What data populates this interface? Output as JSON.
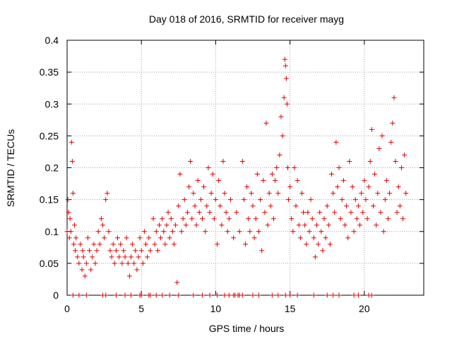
{
  "chart_data": {
    "type": "scatter",
    "title": "Day 018 of 2016, SRMTID for receiver mayg",
    "xlabel": "GPS time / hours",
    "ylabel": "SRMTID / TECUs",
    "xlim": [
      0,
      24
    ],
    "ylim": [
      0,
      0.4
    ],
    "grid": true,
    "marker": "+",
    "color": "#e00000",
    "x_ticks": [
      0,
      5,
      10,
      15,
      20
    ],
    "x_tick_labels": [
      "0",
      "5",
      "10",
      "15",
      "20"
    ],
    "y_ticks": [
      0,
      0.05,
      0.1,
      0.15,
      0.2,
      0.25,
      0.3,
      0.35,
      0.4
    ],
    "y_tick_labels": [
      "0",
      "0.05",
      "0.1",
      "0.15",
      "0.2",
      "0.25",
      "0.3",
      "0.35",
      "0.4"
    ],
    "series": [
      {
        "name": "SRMTID",
        "points": [
          [
            0.0,
            0.1
          ],
          [
            0.05,
            0.15
          ],
          [
            0.1,
            0.13
          ],
          [
            0.15,
            0.09
          ],
          [
            0.2,
            0.12
          ],
          [
            0.25,
            0.1
          ],
          [
            0.3,
            0.24
          ],
          [
            0.35,
            0.21
          ],
          [
            0.4,
            0.16
          ],
          [
            0.45,
            0.08
          ],
          [
            0.5,
            0.11
          ],
          [
            0.55,
            0.07
          ],
          [
            0.6,
            0.09
          ],
          [
            0.7,
            0.06
          ],
          [
            0.8,
            0.05
          ],
          [
            0.9,
            0.08
          ],
          [
            1.0,
            0.04
          ],
          [
            1.05,
            0.07
          ],
          [
            1.1,
            0.06
          ],
          [
            1.2,
            0.03
          ],
          [
            1.3,
            0.05
          ],
          [
            1.4,
            0.09
          ],
          [
            1.5,
            0.07
          ],
          [
            1.6,
            0.04
          ],
          [
            1.7,
            0.06
          ],
          [
            1.8,
            0.08
          ],
          [
            1.9,
            0.05
          ],
          [
            2.0,
            0.07
          ],
          [
            2.1,
            0.1
          ],
          [
            2.2,
            0.08
          ],
          [
            2.3,
            0.12
          ],
          [
            2.4,
            0.11
          ],
          [
            2.5,
            0.09
          ],
          [
            2.6,
            0.15
          ],
          [
            2.7,
            0.16
          ],
          [
            2.8,
            0.1
          ],
          [
            2.9,
            0.07
          ],
          [
            3.0,
            0.06
          ],
          [
            3.1,
            0.08
          ],
          [
            3.2,
            0.05
          ],
          [
            3.3,
            0.07
          ],
          [
            3.4,
            0.09
          ],
          [
            3.5,
            0.06
          ],
          [
            3.6,
            0.08
          ],
          [
            3.7,
            0.05
          ],
          [
            3.8,
            0.07
          ],
          [
            3.9,
            0.06
          ],
          [
            4.0,
            0.09
          ],
          [
            4.1,
            0.05
          ],
          [
            4.2,
            0.03
          ],
          [
            4.3,
            0.06
          ],
          [
            4.4,
            0.08
          ],
          [
            4.5,
            0.05
          ],
          [
            4.6,
            0.07
          ],
          [
            4.7,
            0.04
          ],
          [
            4.8,
            0.06
          ],
          [
            4.9,
            0.09
          ],
          [
            5.0,
            0.07
          ],
          [
            5.1,
            0.05
          ],
          [
            5.2,
            0.1
          ],
          [
            5.3,
            0.08
          ],
          [
            5.4,
            0.06
          ],
          [
            5.5,
            0.09
          ],
          [
            5.6,
            0.07
          ],
          [
            5.8,
            0.12
          ],
          [
            5.9,
            0.08
          ],
          [
            6.0,
            0.1
          ],
          [
            6.1,
            0.07
          ],
          [
            6.2,
            0.11
          ],
          [
            6.3,
            0.09
          ],
          [
            6.4,
            0.12
          ],
          [
            6.5,
            0.1
          ],
          [
            6.6,
            0.08
          ],
          [
            6.7,
            0.11
          ],
          [
            6.8,
            0.13
          ],
          [
            6.9,
            0.09
          ],
          [
            7.0,
            0.12
          ],
          [
            7.1,
            0.1
          ],
          [
            7.2,
            0.08
          ],
          [
            7.3,
            0.11
          ],
          [
            7.4,
            0.02
          ],
          [
            7.5,
            0.14
          ],
          [
            7.6,
            0.19
          ],
          [
            7.7,
            0.1
          ],
          [
            7.8,
            0.12
          ],
          [
            7.9,
            0.15
          ],
          [
            8.0,
            0.11
          ],
          [
            8.1,
            0.13
          ],
          [
            8.2,
            0.17
          ],
          [
            8.3,
            0.21
          ],
          [
            8.4,
            0.12
          ],
          [
            8.5,
            0.16
          ],
          [
            8.6,
            0.14
          ],
          [
            8.7,
            0.11
          ],
          [
            8.8,
            0.18
          ],
          [
            8.9,
            0.13
          ],
          [
            9.0,
            0.15
          ],
          [
            9.1,
            0.12
          ],
          [
            9.2,
            0.17
          ],
          [
            9.3,
            0.1
          ],
          [
            9.4,
            0.14
          ],
          [
            9.5,
            0.2
          ],
          [
            9.6,
            0.13
          ],
          [
            9.7,
            0.16
          ],
          [
            9.8,
            0.19
          ],
          [
            9.9,
            0.12
          ],
          [
            10.0,
            0.15
          ],
          [
            10.1,
            0.08
          ],
          [
            10.2,
            0.18
          ],
          [
            10.3,
            0.14
          ],
          [
            10.4,
            0.11
          ],
          [
            10.5,
            0.21
          ],
          [
            10.6,
            0.16
          ],
          [
            10.7,
            0.13
          ],
          [
            10.8,
            0.1
          ],
          [
            10.9,
            0.12
          ],
          [
            11.0,
            0.15
          ],
          [
            11.2,
            0.09
          ],
          [
            11.4,
            0.13
          ],
          [
            11.6,
            0.1
          ],
          [
            11.8,
            0.21
          ],
          [
            11.9,
            0.15
          ],
          [
            12.0,
            0.08
          ],
          [
            12.1,
            0.17
          ],
          [
            12.2,
            0.12
          ],
          [
            12.3,
            0.1
          ],
          [
            12.4,
            0.16
          ],
          [
            12.5,
            0.14
          ],
          [
            12.6,
            0.09
          ],
          [
            12.7,
            0.12
          ],
          [
            12.8,
            0.19
          ],
          [
            12.9,
            0.1
          ],
          [
            13.0,
            0.15
          ],
          [
            13.1,
            0.07
          ],
          [
            13.2,
            0.18
          ],
          [
            13.3,
            0.13
          ],
          [
            13.4,
            0.27
          ],
          [
            13.5,
            0.11
          ],
          [
            13.6,
            0.16
          ],
          [
            13.7,
            0.14
          ],
          [
            13.8,
            0.19
          ],
          [
            13.9,
            0.12
          ],
          [
            14.0,
            0.18
          ],
          [
            14.1,
            0.2
          ],
          [
            14.2,
            0.16
          ],
          [
            14.3,
            0.22
          ],
          [
            14.4,
            0.28
          ],
          [
            14.5,
            0.25
          ],
          [
            14.6,
            0.31
          ],
          [
            14.65,
            0.37
          ],
          [
            14.7,
            0.36
          ],
          [
            14.75,
            0.34
          ],
          [
            14.8,
            0.3
          ],
          [
            14.85,
            0.2
          ],
          [
            14.9,
            0.15
          ],
          [
            15.0,
            0.17
          ],
          [
            15.1,
            0.12
          ],
          [
            15.2,
            0.1
          ],
          [
            15.3,
            0.2
          ],
          [
            15.4,
            0.14
          ],
          [
            15.5,
            0.18
          ],
          [
            15.6,
            0.11
          ],
          [
            15.7,
            0.09
          ],
          [
            15.8,
            0.16
          ],
          [
            15.9,
            0.13
          ],
          [
            16.0,
            0.11
          ],
          [
            16.1,
            0.08
          ],
          [
            16.2,
            0.13
          ],
          [
            16.3,
            0.1
          ],
          [
            16.4,
            0.15
          ],
          [
            16.5,
            0.12
          ],
          [
            16.6,
            0.09
          ],
          [
            16.7,
            0.06
          ],
          [
            16.8,
            0.11
          ],
          [
            16.9,
            0.08
          ],
          [
            17.0,
            0.13
          ],
          [
            17.1,
            0.1
          ],
          [
            17.2,
            0.07
          ],
          [
            17.3,
            0.12
          ],
          [
            17.4,
            0.09
          ],
          [
            17.5,
            0.14
          ],
          [
            17.6,
            0.11
          ],
          [
            17.7,
            0.08
          ],
          [
            17.8,
            0.19
          ],
          [
            17.9,
            0.16
          ],
          [
            18.0,
            0.13
          ],
          [
            18.1,
            0.24
          ],
          [
            18.2,
            0.17
          ],
          [
            18.3,
            0.2
          ],
          [
            18.4,
            0.12
          ],
          [
            18.5,
            0.15
          ],
          [
            18.6,
            0.18
          ],
          [
            18.7,
            0.11
          ],
          [
            18.8,
            0.14
          ],
          [
            18.9,
            0.09
          ],
          [
            19.0,
            0.21
          ],
          [
            19.1,
            0.13
          ],
          [
            19.2,
            0.17
          ],
          [
            19.3,
            0.1
          ],
          [
            19.4,
            0.15
          ],
          [
            19.5,
            0.12
          ],
          [
            19.6,
            0.14
          ],
          [
            19.7,
            0.11
          ],
          [
            19.8,
            0.16
          ],
          [
            19.9,
            0.13
          ],
          [
            20.0,
            0.18
          ],
          [
            20.1,
            0.15
          ],
          [
            20.2,
            0.12
          ],
          [
            20.3,
            0.17
          ],
          [
            20.4,
            0.21
          ],
          [
            20.5,
            0.26
          ],
          [
            20.6,
            0.14
          ],
          [
            20.7,
            0.19
          ],
          [
            20.8,
            0.11
          ],
          [
            20.9,
            0.16
          ],
          [
            21.0,
            0.23
          ],
          [
            21.1,
            0.13
          ],
          [
            21.2,
            0.25
          ],
          [
            21.3,
            0.1
          ],
          [
            21.4,
            0.15
          ],
          [
            21.5,
            0.18
          ],
          [
            21.6,
            0.12
          ],
          [
            21.7,
            0.16
          ],
          [
            21.8,
            0.24
          ],
          [
            21.9,
            0.27
          ],
          [
            22.0,
            0.31
          ],
          [
            22.1,
            0.21
          ],
          [
            22.2,
            0.13
          ],
          [
            22.3,
            0.17
          ],
          [
            22.4,
            0.14
          ],
          [
            22.5,
            0.2
          ],
          [
            22.6,
            0.12
          ],
          [
            22.7,
            0.22
          ],
          [
            22.8,
            0.16
          ],
          [
            0.4,
            0.0
          ],
          [
            0.8,
            0.0
          ],
          [
            1.3,
            0.0
          ],
          [
            2.4,
            0.0
          ],
          [
            2.6,
            0.0
          ],
          [
            3.3,
            0.0
          ],
          [
            3.9,
            0.0
          ],
          [
            4.3,
            0.0
          ],
          [
            4.9,
            0.0
          ],
          [
            5.0,
            0.0
          ],
          [
            5.5,
            0.0
          ],
          [
            5.6,
            0.0
          ],
          [
            6.0,
            0.0
          ],
          [
            6.4,
            0.0
          ],
          [
            6.9,
            0.0
          ],
          [
            7.5,
            0.0
          ],
          [
            8.5,
            0.0
          ],
          [
            9.1,
            0.0
          ],
          [
            9.6,
            0.0
          ],
          [
            10.1,
            0.0
          ],
          [
            10.6,
            0.0
          ],
          [
            10.9,
            0.0
          ],
          [
            11.2,
            0.0
          ],
          [
            11.3,
            0.0
          ],
          [
            11.5,
            0.0
          ],
          [
            11.6,
            0.0
          ],
          [
            11.8,
            0.0
          ],
          [
            12.5,
            0.0
          ],
          [
            12.9,
            0.0
          ],
          [
            13.8,
            0.0
          ],
          [
            14.2,
            0.0
          ],
          [
            14.7,
            0.0
          ],
          [
            15.0,
            0.0
          ],
          [
            15.5,
            0.0
          ],
          [
            16.6,
            0.0
          ],
          [
            17.5,
            0.0
          ],
          [
            17.9,
            0.0
          ],
          [
            18.3,
            0.0
          ],
          [
            19.3,
            0.0
          ],
          [
            19.6,
            0.0
          ],
          [
            20.3,
            0.0
          ],
          [
            20.5,
            0.0
          ]
        ]
      }
    ]
  }
}
